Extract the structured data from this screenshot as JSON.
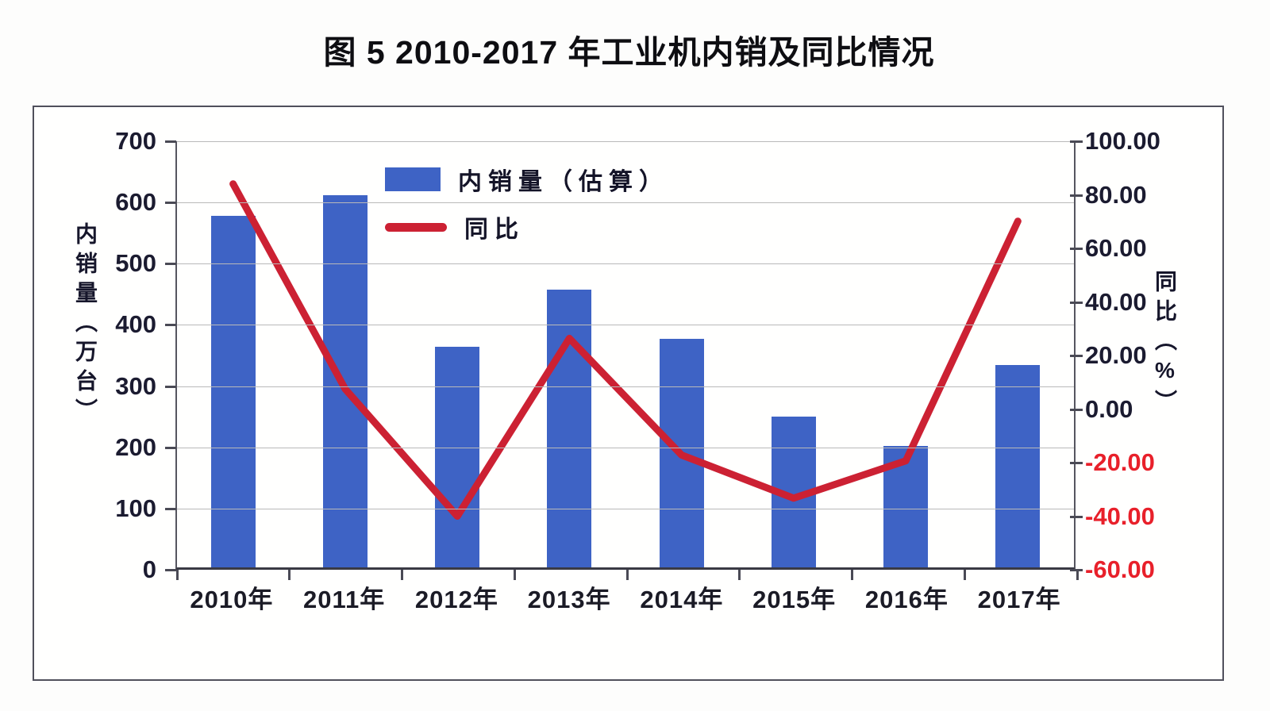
{
  "chart_data": {
    "type": "combo-bar-line",
    "title": "图 5 2010-2017 年工业机内销及同比情况",
    "categories": [
      "2010年",
      "2011年",
      "2012年",
      "2013年",
      "2014年",
      "2015年",
      "2016年",
      "2017年"
    ],
    "series": [
      {
        "name": "内销量（估算）",
        "type": "bar",
        "axis": "left",
        "values": [
          578,
          611,
          362,
          456,
          375,
          248,
          200,
          333
        ]
      },
      {
        "name": "同比",
        "type": "line",
        "axis": "right",
        "values": [
          84.0,
          7.0,
          -40.8,
          26.0,
          -17.8,
          -34.0,
          -20.0,
          70.0
        ]
      }
    ],
    "left_axis": {
      "title": "内销量（万台）",
      "min": 0,
      "max": 700,
      "tick_step": 100,
      "ticks": [
        "700",
        "600",
        "500",
        "400",
        "300",
        "200",
        "100",
        "0"
      ]
    },
    "right_axis": {
      "title": "同比（%）",
      "min": -60,
      "max": 100,
      "tick_step": 20,
      "ticks": [
        "100.00",
        "80.00",
        "60.00",
        "40.00",
        "20.00",
        "0.00",
        "-20.00",
        "-40.00",
        "-60.00"
      ]
    },
    "grid": true,
    "legend_position": "inside-plot-upper-left"
  },
  "colors": {
    "bar_blue": "#3e63c5",
    "line_red": "#cc2133",
    "tick_dark": "#1b1b30",
    "tick_negative_red": "#e8202a",
    "gridline_gray": "#b9b9b9",
    "axis_line": "#4a4a55"
  }
}
